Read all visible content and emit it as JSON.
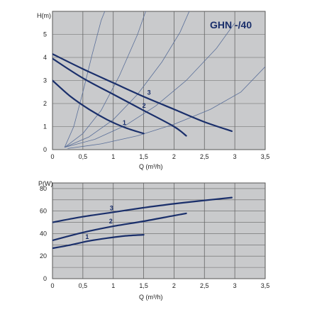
{
  "chart_data": [
    {
      "type": "line",
      "title": "GHN -/40",
      "ylabel": "H(m)",
      "xlabel": "Q (m³/h)",
      "xlim": [
        0,
        3.5
      ],
      "ylim": [
        0,
        6
      ],
      "xticks": [
        "0",
        "0,5",
        "1",
        "1,5",
        "2",
        "2,5",
        "3",
        "3,5"
      ],
      "yticks": [
        "0",
        "1",
        "2",
        "3",
        "4",
        "5"
      ],
      "grid": true,
      "series": [
        {
          "name": "1",
          "x": [
            0,
            0.3,
            0.6,
            0.9,
            1.2,
            1.5
          ],
          "y": [
            3.0,
            2.3,
            1.75,
            1.3,
            0.95,
            0.7
          ]
        },
        {
          "name": "2",
          "x": [
            0,
            0.5,
            1.0,
            1.5,
            2.0,
            2.2
          ],
          "y": [
            3.95,
            3.1,
            2.4,
            1.7,
            1.0,
            0.6
          ]
        },
        {
          "name": "3",
          "x": [
            0,
            0.5,
            1.0,
            1.5,
            2.0,
            2.5,
            2.95
          ],
          "y": [
            4.15,
            3.5,
            2.9,
            2.3,
            1.75,
            1.2,
            0.8
          ]
        }
      ],
      "system_curves": [
        {
          "x": [
            0.2,
            0.35,
            0.5,
            0.65,
            0.8,
            0.95
          ],
          "y": [
            0.1,
            1.0,
            2.5,
            4.1,
            5.6,
            6.6
          ]
        },
        {
          "x": [
            0.2,
            0.5,
            0.8,
            1.1,
            1.4,
            1.6
          ],
          "y": [
            0.1,
            0.7,
            1.7,
            3.2,
            5.0,
            6.5
          ]
        },
        {
          "x": [
            0.2,
            0.6,
            1.0,
            1.4,
            1.8,
            2.1,
            2.3
          ],
          "y": [
            0.1,
            0.55,
            1.3,
            2.4,
            3.8,
            5.1,
            6.3
          ]
        },
        {
          "x": [
            0.2,
            0.7,
            1.2,
            1.7,
            2.2,
            2.7,
            3.0
          ],
          "y": [
            0.1,
            0.45,
            1.05,
            1.9,
            3.0,
            4.4,
            5.5
          ]
        },
        {
          "x": [
            0.25,
            0.8,
            1.4,
            2.0,
            2.6,
            3.1,
            3.5
          ],
          "y": [
            0.05,
            0.25,
            0.6,
            1.1,
            1.75,
            2.5,
            3.6
          ]
        }
      ]
    },
    {
      "type": "line",
      "title": "",
      "ylabel": "P(W)",
      "xlabel": "Q (m³/h)",
      "xlim": [
        0,
        3.5
      ],
      "ylim": [
        0,
        85
      ],
      "xticks": [
        "0",
        "0,5",
        "1",
        "1,5",
        "2",
        "2,5",
        "3",
        "3,5"
      ],
      "yticks": [
        "0",
        "20",
        "40",
        "60",
        "80"
      ],
      "grid": true,
      "series": [
        {
          "name": "1",
          "x": [
            0,
            0.3,
            0.6,
            0.9,
            1.2,
            1.5
          ],
          "y": [
            27,
            30,
            33.5,
            36,
            38,
            39
          ]
        },
        {
          "name": "2",
          "x": [
            0,
            0.5,
            1.0,
            1.5,
            2.0,
            2.2
          ],
          "y": [
            34,
            41,
            46.5,
            51,
            56,
            58
          ]
        },
        {
          "name": "3",
          "x": [
            0,
            0.5,
            1.0,
            1.5,
            2.0,
            2.5,
            2.95
          ],
          "y": [
            50,
            55,
            59,
            63,
            66.5,
            69.5,
            72
          ]
        }
      ]
    }
  ]
}
